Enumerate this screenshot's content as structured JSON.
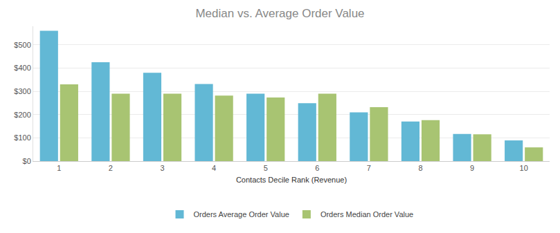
{
  "chart_data": {
    "type": "bar",
    "title": "Median vs. Average Order Value",
    "x_label": "Contacts Decile Rank (Revenue)",
    "categories": [
      "1",
      "2",
      "3",
      "4",
      "5",
      "6",
      "7",
      "8",
      "9",
      "10"
    ],
    "series": [
      {
        "name": "Orders Average Order Value",
        "color": "#62b8d5",
        "values": [
          561,
          425,
          380,
          332,
          290,
          249,
          210,
          170,
          117,
          89
        ]
      },
      {
        "name": "Orders Median Order Value",
        "color": "#a8c472",
        "values": [
          330,
          290,
          290,
          282,
          274,
          290,
          232,
          176,
          115,
          59
        ]
      }
    ],
    "ylim": [
      0,
      580
    ],
    "yticks": [
      {
        "value": 0,
        "label": "$0"
      },
      {
        "value": 100,
        "label": "$100"
      },
      {
        "value": 200,
        "label": "$200"
      },
      {
        "value": 300,
        "label": "$300"
      },
      {
        "value": 400,
        "label": "$400"
      },
      {
        "value": 500,
        "label": "$500"
      }
    ],
    "grid": true,
    "legend": "bottom"
  }
}
